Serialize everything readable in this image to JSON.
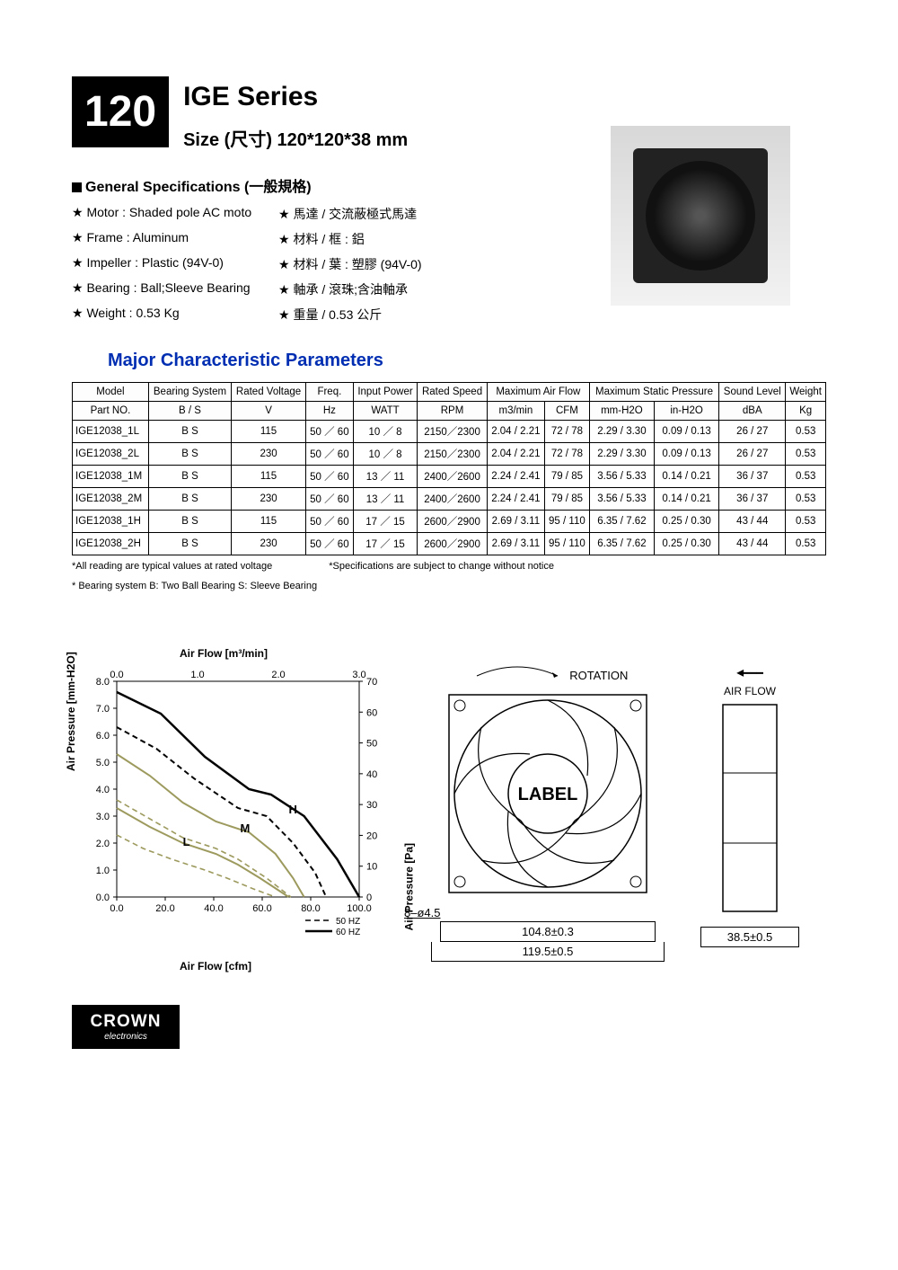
{
  "header": {
    "model_number": "120",
    "series": "IGE Series",
    "size": "Size (尺寸) 120*120*38 mm"
  },
  "general_specs": {
    "heading": "General Specifications  (一般規格)",
    "rows": [
      {
        "en": "Motor   : Shaded pole AC moto",
        "zh": "馬達 / 交流蔽極式馬達"
      },
      {
        "en": "Frame   : Aluminum",
        "zh": "材料 / 框 : 鋁"
      },
      {
        "en": "Impeller : Plastic (94V-0)",
        "zh": "材料 / 葉 : 塑膠 (94V-0)"
      },
      {
        "en": "Bearing  : Ball;Sleeve Bearing",
        "zh": "軸承 / 滾珠;含油軸承"
      },
      {
        "en": "Weight  : 0.53  Kg",
        "zh": "重量 / 0.53 公斤"
      }
    ]
  },
  "param_heading": "Major Characteristic Parameters",
  "columns": {
    "r1": [
      "Model",
      "Bearing System",
      "Rated Voltage",
      "Freq.",
      "Input Power",
      "Rated Speed",
      "Maximum Air Flow",
      "Maximum Static Pressure",
      "Sound Level",
      "Weight"
    ],
    "r2": [
      "Part NO.",
      "B / S",
      "V",
      "Hz",
      "WATT",
      "RPM",
      "m3/min",
      "CFM",
      "mm-H2O",
      "in-H2O",
      "dBA",
      "Kg"
    ]
  },
  "rows": [
    {
      "pn": "IGE12038_1L",
      "bs": "B S",
      "v": "115",
      "hz": "50 ／ 60",
      "w": "10 ／ 8",
      "rpm": "2150／2300",
      "m3": "2.04  / 2.21",
      "cfm": "72   /   78",
      "mm": "2.29 /  3.30",
      "in": "0.09  / 0.13",
      "db": "26   /   27",
      "kg": "0.53"
    },
    {
      "pn": "IGE12038_2L",
      "bs": "B S",
      "v": "230",
      "hz": "50 ／ 60",
      "w": "10 ／ 8",
      "rpm": "2150／2300",
      "m3": "2.04  / 2.21",
      "cfm": "72   /   78",
      "mm": "2.29 /  3.30",
      "in": "0.09  / 0.13",
      "db": "26   /   27",
      "kg": "0.53"
    },
    {
      "pn": "IGE12038_1M",
      "bs": "B S",
      "v": "115",
      "hz": "50 ／ 60",
      "w": "13 ／ 11",
      "rpm": "2400／2600",
      "m3": "2.24  / 2.41",
      "cfm": "79   /   85",
      "mm": "3.56 /  5.33",
      "in": "0.14  / 0.21",
      "db": "36   /   37",
      "kg": "0.53"
    },
    {
      "pn": "IGE12038_2M",
      "bs": "B S",
      "v": "230",
      "hz": "50 ／ 60",
      "w": "13 ／ 11",
      "rpm": "2400／2600",
      "m3": "2.24  / 2.41",
      "cfm": "79   /   85",
      "mm": "3.56 /  5.33",
      "in": "0.14  / 0.21",
      "db": "36   /   37",
      "kg": "0.53"
    },
    {
      "pn": "IGE12038_1H",
      "bs": "B S",
      "v": "115",
      "hz": "50 ／ 60",
      "w": "17 ／ 15",
      "rpm": "2600／2900",
      "m3": "2.69  / 3.11",
      "cfm": "95   /   110",
      "mm": "6.35 /  7.62",
      "in": "0.25  / 0.30",
      "db": "43   /   44",
      "kg": "0.53"
    },
    {
      "pn": "IGE12038_2H",
      "bs": "B S",
      "v": "230",
      "hz": "50 ／ 60",
      "w": "17 ／ 15",
      "rpm": "2600／2900",
      "m3": "2.69  / 3.11",
      "cfm": "95   /   110",
      "mm": "6.35 /  7.62",
      "in": "0.25  / 0.30",
      "db": "43   /   44",
      "kg": "0.53"
    }
  ],
  "notes": {
    "a": "*All reading are typical values at rated voltage",
    "b": "*Specifications are subject to change without notice",
    "c": "* Bearing system  B: Two Ball Bearing  S: Sleeve Bearing"
  },
  "chart": {
    "title": "Air Flow [m³/min]",
    "x_top_ticks": [
      "0.0",
      "1.0",
      "2.0",
      "3.0"
    ],
    "y_left_label": "Air Pressure [mm-H2O]",
    "y_left_ticks": [
      "0.0",
      "1.0",
      "2.0",
      "3.0",
      "4.0",
      "5.0",
      "6.0",
      "7.0",
      "8.0"
    ],
    "y_right_label": "Air Pressure [Pa]",
    "y_right_ticks": [
      "0",
      "10",
      "20",
      "30",
      "40",
      "50",
      "60",
      "70"
    ],
    "x_bottom_label": "Air Flow [cfm]",
    "x_bottom_ticks": [
      "0.0",
      "20.0",
      "40.0",
      "60.0",
      "80.0",
      "100.0"
    ],
    "legend50": "50 HZ",
    "legend60": "60 HZ",
    "curves": {
      "colors": {
        "L": "#9d9a5e",
        "M": "#9d9a5e",
        "H": "#000000",
        "L50": "#9d9a5e",
        "M50": "#9d9a5e",
        "H50": "#000000"
      },
      "line_labels": {
        "L": "L",
        "M": "M",
        "H": "H"
      },
      "x_range_cfm": [
        0,
        110
      ],
      "y_range_mm": [
        0,
        8
      ],
      "H_60": [
        [
          0,
          7.6
        ],
        [
          20,
          6.8
        ],
        [
          40,
          5.2
        ],
        [
          60,
          4.0
        ],
        [
          70,
          3.8
        ],
        [
          85,
          3.0
        ],
        [
          100,
          1.4
        ],
        [
          110,
          0
        ]
      ],
      "H_50": [
        [
          0,
          6.3
        ],
        [
          18,
          5.5
        ],
        [
          35,
          4.4
        ],
        [
          55,
          3.3
        ],
        [
          68,
          3.0
        ],
        [
          80,
          2.0
        ],
        [
          90,
          0.9
        ],
        [
          95,
          0
        ]
      ],
      "M_60": [
        [
          0,
          5.3
        ],
        [
          15,
          4.5
        ],
        [
          30,
          3.5
        ],
        [
          45,
          2.8
        ],
        [
          60,
          2.4
        ],
        [
          72,
          1.6
        ],
        [
          80,
          0.7
        ],
        [
          85,
          0
        ]
      ],
      "M_50": [
        [
          0,
          3.6
        ],
        [
          15,
          2.9
        ],
        [
          30,
          2.2
        ],
        [
          45,
          1.8
        ],
        [
          55,
          1.4
        ],
        [
          68,
          0.7
        ],
        [
          79,
          0
        ]
      ],
      "L_60": [
        [
          0,
          3.3
        ],
        [
          15,
          2.6
        ],
        [
          30,
          2.0
        ],
        [
          45,
          1.6
        ],
        [
          55,
          1.2
        ],
        [
          65,
          0.7
        ],
        [
          78,
          0
        ]
      ],
      "L_50": [
        [
          0,
          2.3
        ],
        [
          12,
          1.8
        ],
        [
          25,
          1.4
        ],
        [
          40,
          1.0
        ],
        [
          50,
          0.7
        ],
        [
          62,
          0.3
        ],
        [
          72,
          0
        ]
      ]
    }
  },
  "mech": {
    "rotation": "ROTATION",
    "label": "LABEL",
    "airflow": "AIR FLOW",
    "hole": "8–ø4.5",
    "dim1": "104.8±0.3",
    "dim2": "119.5±0.5",
    "depth": "38.5±0.5"
  },
  "logo": {
    "brand": "CROWN",
    "sub": "electronics"
  }
}
